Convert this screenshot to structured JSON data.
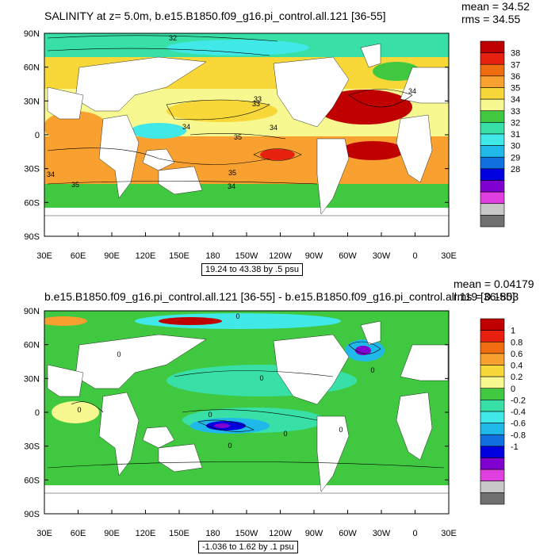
{
  "x_ticks": [
    "30E",
    "60E",
    "90E",
    "120E",
    "150E",
    "180",
    "150W",
    "120W",
    "90W",
    "60W",
    "30W",
    "0",
    "30E"
  ],
  "y_ticks": [
    "90N",
    "60N",
    "30N",
    "0",
    "30S",
    "60S",
    "90S"
  ],
  "panels": [
    {
      "title": "SALINITY at z=   5.0m, b.e15.B1850.f09_g16.pi_control.all.121 [36-55]",
      "mean": "mean = 34.52",
      "rms": "rms = 34.55",
      "info": "19.24 to 43.38 by .5 psu",
      "colorbar": {
        "labels": [
          "38",
          "37",
          "36",
          "35",
          "34",
          "33",
          "32",
          "31",
          "30",
          "29",
          "28"
        ],
        "colors": [
          "#c00000",
          "#e82010",
          "#f06c10",
          "#f8a030",
          "#f8d838",
          "#f8f890",
          "#40c840",
          "#38e0a8",
          "#40e8e8",
          "#20b8e8",
          "#1070e0",
          "#0000e0",
          "#8000d0",
          "#e040e0",
          "#c8c8c8",
          "#707070"
        ]
      },
      "contour_labels": [
        "32",
        "33",
        "33",
        "34",
        "34",
        "35",
        "34",
        "35",
        "35",
        "34",
        "34"
      ]
    },
    {
      "title": "b.e15.B1850.f09_g16.pi_control.all.121 [36-55] - b.e15.B1850.f09_g16.pi_control.all.119 [36-55]",
      "mean": "mean = 0.04179",
      "rms": "rms = 0.1803",
      "info": "-1.036 to 1.62 by .1 psu",
      "colorbar": {
        "labels": [
          "1",
          "0.8",
          "0.6",
          "0.4",
          "0.2",
          "0",
          "-0.2",
          "-0.4",
          "-0.6",
          "-0.8",
          "-1"
        ],
        "colors": [
          "#c00000",
          "#e82010",
          "#f06c10",
          "#f8a030",
          "#f8d838",
          "#f8f890",
          "#40c840",
          "#38e0a8",
          "#40e8e8",
          "#20b8e8",
          "#1070e0",
          "#0000e0",
          "#8000d0",
          "#e040e0",
          "#c8c8c8",
          "#707070"
        ]
      },
      "contour_labels": [
        "0",
        "0",
        "0",
        "0",
        "0",
        "0",
        "0",
        "0",
        "0"
      ]
    }
  ]
}
